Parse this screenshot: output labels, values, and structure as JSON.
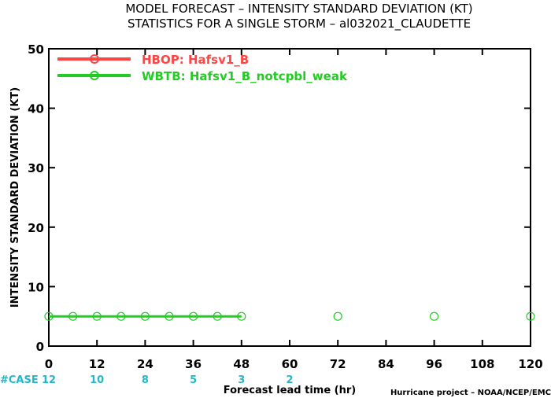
{
  "chart_data": {
    "type": "line",
    "title": "MODEL FORECAST – INTENSITY STANDARD DEVIATION (KT)",
    "subtitle": "STATISTICS FOR A SINGLE STORM – al032021_CLAUDETTE",
    "xlabel": "Forecast lead time (hr)",
    "ylabel": "INTENSITY STANDARD DEVIATION (KT)",
    "xlim": [
      0,
      120
    ],
    "ylim": [
      0,
      50
    ],
    "xticks": [
      0,
      12,
      24,
      36,
      48,
      60,
      72,
      84,
      96,
      108,
      120
    ],
    "yticks": [
      0,
      10,
      20,
      30,
      40,
      50
    ],
    "grid": false,
    "legend_position": "top-left",
    "series": [
      {
        "name": "HBOP: Hafsv1_B",
        "color": "#ff4444",
        "x": [],
        "y": []
      },
      {
        "name": "WBTB: Hafsv1_B_notcpbl_weak",
        "color": "#22cc22",
        "line_x": [
          0,
          6,
          12,
          18,
          24,
          30,
          36,
          42,
          48
        ],
        "line_y": [
          5,
          5,
          5,
          5,
          5,
          5,
          5,
          5,
          5
        ],
        "x": [
          0,
          6,
          12,
          18,
          24,
          30,
          36,
          42,
          48,
          72,
          96,
          120
        ],
        "y": [
          5,
          5,
          5,
          5,
          5,
          5,
          5,
          5,
          5,
          5,
          5,
          5
        ]
      }
    ],
    "case_label": "#CASE",
    "case_counts": [
      {
        "x": 0,
        "n": "12"
      },
      {
        "x": 12,
        "n": "10"
      },
      {
        "x": 24,
        "n": "8"
      },
      {
        "x": 36,
        "n": "5"
      },
      {
        "x": 48,
        "n": "3"
      },
      {
        "x": 60,
        "n": "2"
      }
    ],
    "case_color": "#22b8c9",
    "credit": "Hurricane project – NOAA/NCEP/EMC"
  }
}
